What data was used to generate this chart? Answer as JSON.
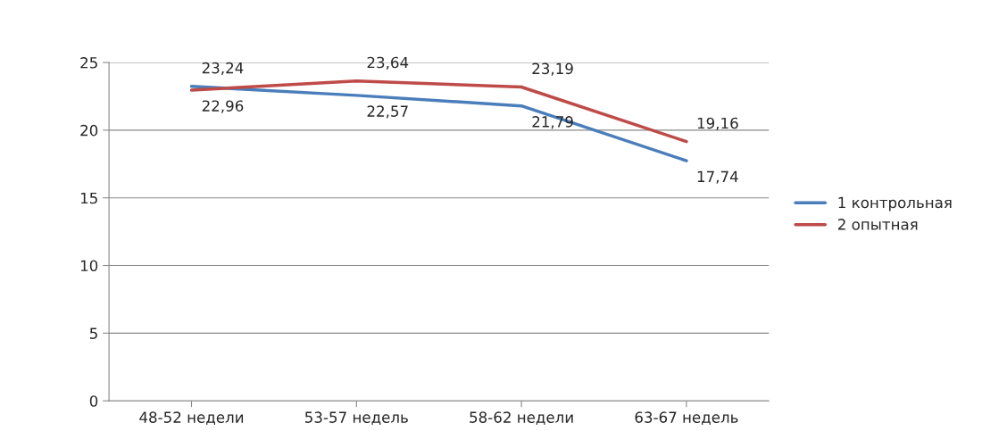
{
  "chart_data": {
    "type": "line",
    "categories": [
      "48-52 недели",
      "53-57 недель",
      "58-62 недели",
      "63-67 недель"
    ],
    "series": [
      {
        "name": "1 контрольная",
        "color": "#4a7ebb",
        "values": [
          23.24,
          22.57,
          21.79,
          17.74
        ],
        "value_labels": [
          "23,24",
          "22,57",
          "21,79",
          "17,74"
        ]
      },
      {
        "name": "2 опытная",
        "color": "#be4b48",
        "values": [
          22.96,
          23.64,
          23.19,
          19.16
        ],
        "value_labels": [
          "22,96",
          "23,64",
          "23,19",
          "19,16"
        ]
      }
    ],
    "ylim": [
      0,
      25
    ],
    "yticks": [
      0,
      5,
      10,
      15,
      20,
      25
    ],
    "grid": "y",
    "legend": "right",
    "marker": "none",
    "line_style": "solid"
  }
}
